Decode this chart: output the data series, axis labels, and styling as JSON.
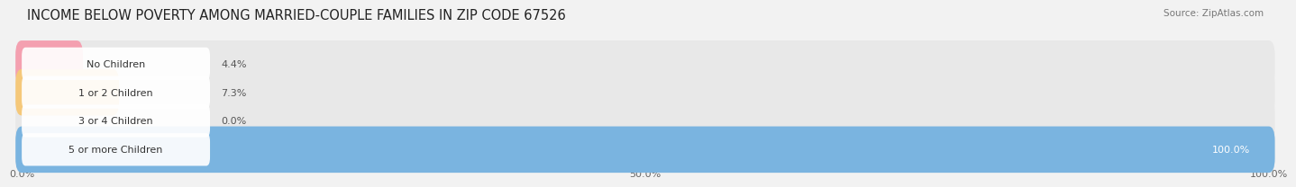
{
  "title": "INCOME BELOW POVERTY AMONG MARRIED-COUPLE FAMILIES IN ZIP CODE 67526",
  "source": "Source: ZipAtlas.com",
  "categories": [
    "No Children",
    "1 or 2 Children",
    "3 or 4 Children",
    "5 or more Children"
  ],
  "values": [
    4.4,
    7.3,
    0.0,
    100.0
  ],
  "bar_colors": [
    "#f4a0b0",
    "#f5c87a",
    "#f4a0b0",
    "#7ab4e0"
  ],
  "label_colors": [
    "#333333",
    "#333333",
    "#333333",
    "#ffffff"
  ],
  "xlim": [
    0,
    100
  ],
  "xtick_labels": [
    "0.0%",
    "50.0%",
    "100.0%"
  ],
  "bg_color": "#f2f2f2",
  "bar_bg_color": "#e0e0e0",
  "row_bg_color": "#e8e8e8",
  "title_fontsize": 10.5,
  "label_fontsize": 8,
  "value_fontsize": 8,
  "source_fontsize": 7.5
}
